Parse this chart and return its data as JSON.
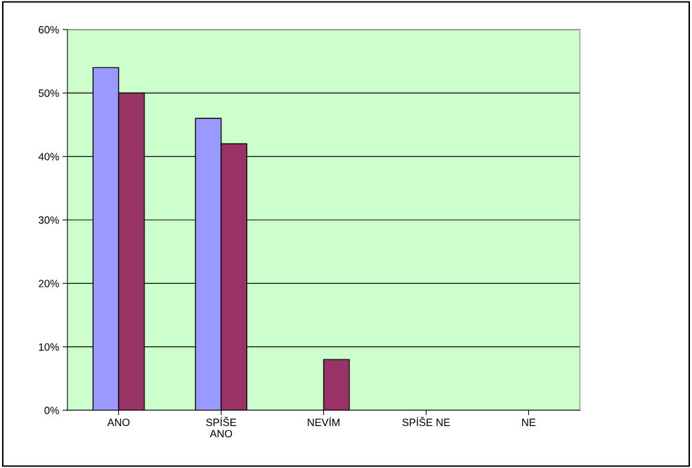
{
  "chart_data": {
    "type": "bar",
    "categories": [
      "ANO",
      "SPÍŠE\nANO",
      "NEVÍM",
      "SPÍŠE NE",
      "NE"
    ],
    "series": [
      {
        "color": "#9999ff",
        "values": [
          54,
          46,
          0,
          0,
          0
        ]
      },
      {
        "color": "#993366",
        "values": [
          50,
          42,
          8,
          0,
          0
        ]
      }
    ],
    "ylim": [
      0,
      60
    ],
    "yticks": [
      {
        "value": 0,
        "label": "0%"
      },
      {
        "value": 10,
        "label": "10%"
      },
      {
        "value": 20,
        "label": "20%"
      },
      {
        "value": 30,
        "label": "30%"
      },
      {
        "value": 40,
        "label": "40%"
      },
      {
        "value": 50,
        "label": "50%"
      },
      {
        "value": 60,
        "label": "60%"
      }
    ],
    "grid": "y"
  }
}
